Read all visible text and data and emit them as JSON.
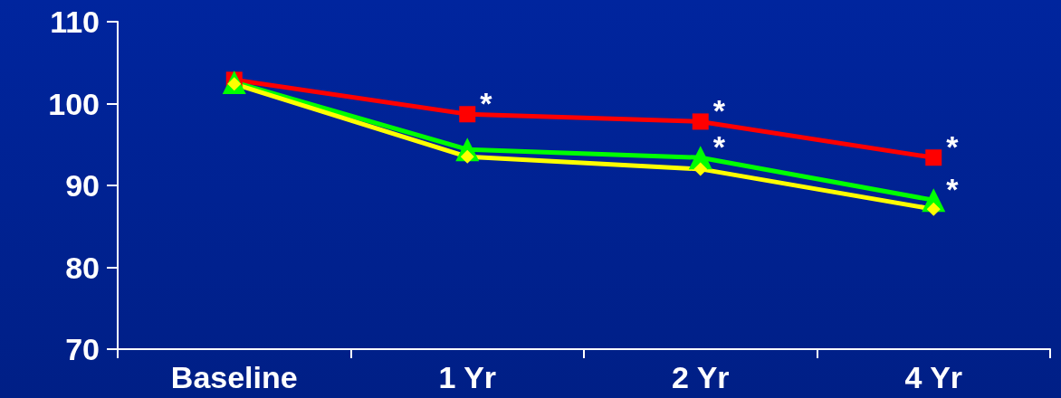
{
  "chart_data": {
    "type": "line",
    "categories": [
      "Baseline",
      "1 Yr",
      "2 Yr",
      "4 Yr"
    ],
    "series": [
      {
        "color": "#ff0000",
        "marker": "square",
        "values": [
          102.9,
          98.7,
          97.8,
          93.4
        ]
      },
      {
        "color": "#00ff00",
        "marker": "triangle",
        "values": [
          102.6,
          94.4,
          93.4,
          88.2
        ]
      },
      {
        "color": "#ffff00",
        "marker": "diamond",
        "values": [
          102.4,
          93.5,
          92.0,
          87.1
        ]
      }
    ],
    "ylim": [
      70,
      110
    ],
    "yticks": [
      70,
      80,
      90,
      100,
      110
    ],
    "grid": false,
    "line_style": "solid",
    "annotations": [
      {
        "text": "*",
        "x": "1 Yr",
        "y": 98.7
      },
      {
        "text": "*",
        "x": "2 Yr",
        "y": 97.8
      },
      {
        "text": "*",
        "x": "2 Yr",
        "y": 93.4
      },
      {
        "text": "*",
        "x": "4 Yr",
        "y": 93.4
      },
      {
        "text": "*",
        "x": "4 Yr",
        "y": 88.2
      }
    ]
  }
}
